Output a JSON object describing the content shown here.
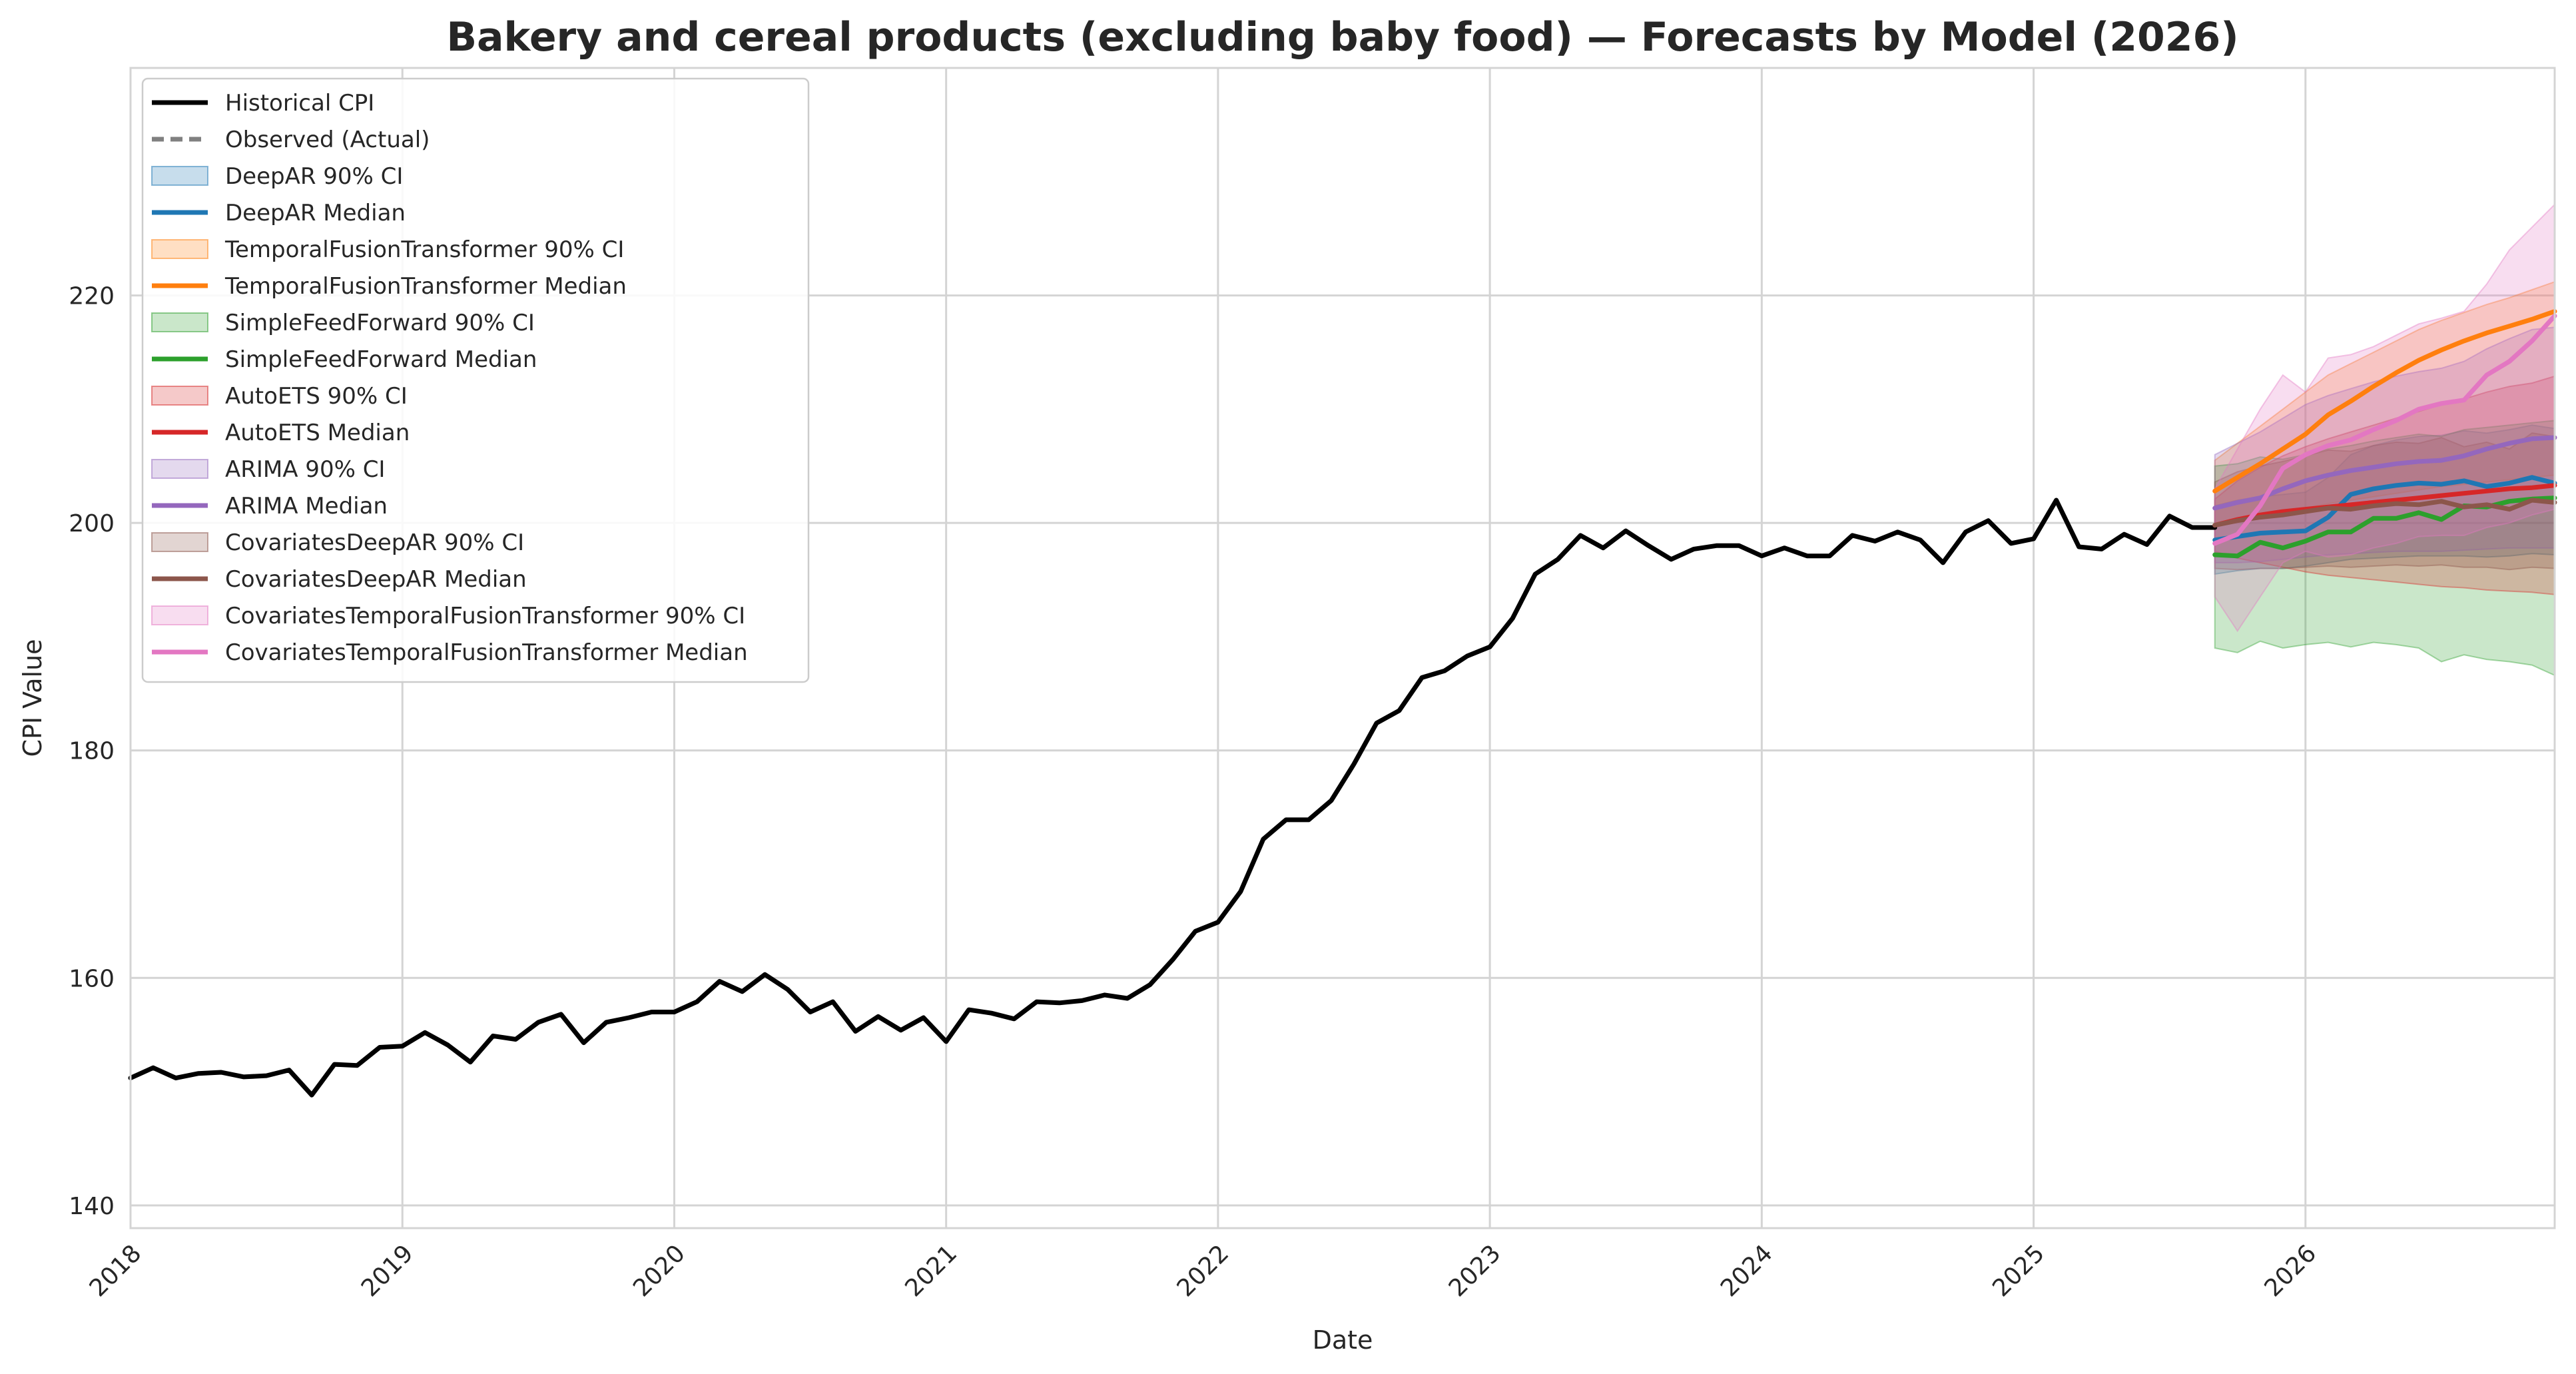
{
  "chart_data": {
    "type": "line",
    "title": "Bakery and cereal products (excluding baby food) — Forecasts by Model (2026)",
    "xlabel": "Date",
    "ylabel": "CPI Value",
    "xlim": [
      "2018-01",
      "2026-12"
    ],
    "ylim": [
      138,
      240
    ],
    "yticks": [
      140,
      160,
      180,
      200,
      220
    ],
    "xticks": [
      "2018",
      "2019",
      "2020",
      "2021",
      "2022",
      "2023",
      "2024",
      "2025",
      "2026"
    ],
    "grid": true,
    "legend_position": "upper left",
    "historical": {
      "name": "Historical CPI",
      "color": "#000000",
      "x": [
        "2018-01",
        "2018-02",
        "2018-03",
        "2018-04",
        "2018-05",
        "2018-06",
        "2018-07",
        "2018-08",
        "2018-09",
        "2018-10",
        "2018-11",
        "2018-12",
        "2019-01",
        "2019-02",
        "2019-03",
        "2019-04",
        "2019-05",
        "2019-06",
        "2019-07",
        "2019-08",
        "2019-09",
        "2019-10",
        "2019-11",
        "2019-12",
        "2020-01",
        "2020-02",
        "2020-03",
        "2020-04",
        "2020-05",
        "2020-06",
        "2020-07",
        "2020-08",
        "2020-09",
        "2020-10",
        "2020-11",
        "2020-12",
        "2021-01",
        "2021-02",
        "2021-03",
        "2021-04",
        "2021-05",
        "2021-06",
        "2021-07",
        "2021-08",
        "2021-09",
        "2021-10",
        "2021-11",
        "2021-12",
        "2022-01",
        "2022-02",
        "2022-03",
        "2022-04",
        "2022-05",
        "2022-06",
        "2022-07",
        "2022-08",
        "2022-09",
        "2022-10",
        "2022-11",
        "2022-12",
        "2023-01",
        "2023-02",
        "2023-03",
        "2023-04",
        "2023-05",
        "2023-06",
        "2023-07",
        "2023-08",
        "2023-09",
        "2023-10",
        "2023-11",
        "2023-12",
        "2024-01",
        "2024-02",
        "2024-03",
        "2024-04",
        "2024-05",
        "2024-06",
        "2024-07",
        "2024-08",
        "2024-09",
        "2024-10",
        "2024-11",
        "2024-12",
        "2025-01",
        "2025-02",
        "2025-03",
        "2025-04",
        "2025-05",
        "2025-06",
        "2025-07",
        "2025-08",
        "2025-09"
      ],
      "values": [
        151.2,
        152.1,
        151.2,
        151.6,
        151.7,
        151.3,
        151.4,
        151.9,
        149.7,
        152.4,
        152.3,
        153.9,
        154.0,
        155.2,
        154.1,
        152.6,
        154.9,
        154.6,
        156.1,
        156.8,
        154.3,
        156.1,
        156.5,
        157.0,
        157.0,
        157.9,
        159.7,
        158.8,
        160.3,
        159.0,
        157.0,
        157.9,
        155.3,
        156.6,
        155.4,
        156.5,
        154.4,
        157.2,
        156.9,
        156.4,
        157.9,
        157.8,
        158.0,
        158.5,
        158.2,
        159.4,
        161.6,
        164.1,
        164.9,
        167.6,
        172.2,
        173.9,
        173.9,
        175.6,
        178.8,
        182.4,
        183.5,
        186.4,
        187.0,
        188.3,
        189.1,
        191.6,
        195.5,
        196.8,
        198.9,
        197.8,
        199.3,
        198.0,
        196.8,
        197.7,
        198.0,
        198.0,
        197.1,
        197.8,
        197.1,
        197.1,
        198.9,
        198.4,
        199.2,
        198.5,
        196.5,
        199.2,
        200.2,
        198.2,
        198.6,
        202.0,
        197.9,
        197.7,
        199.0,
        198.1,
        200.6,
        199.6,
        199.6
      ]
    },
    "observed": {
      "name": "Observed (Actual)",
      "color": "#808080",
      "x": [],
      "values": []
    },
    "forecast_x": [
      "2025-09",
      "2025-10",
      "2025-11",
      "2025-12",
      "2026-01",
      "2026-02",
      "2026-03",
      "2026-04",
      "2026-05",
      "2026-06",
      "2026-07",
      "2026-08",
      "2026-09",
      "2026-10",
      "2026-11",
      "2026-12"
    ],
    "series": [
      {
        "name": "DeepAR Median",
        "ci_name": "DeepAR 90% CI",
        "color": "#1f77b4",
        "values": [
          198.5,
          198.8,
          199.1,
          199.2,
          199.3,
          200.5,
          202.5,
          203.0,
          203.3,
          203.5,
          203.4,
          203.7,
          203.2,
          203.5,
          204.0,
          203.5
        ],
        "lower": [
          195.5,
          195.8,
          196.0,
          196.0,
          196.2,
          196.5,
          196.8,
          196.9,
          197.0,
          197.1,
          197.1,
          197.1,
          197.0,
          197.1,
          197.3,
          197.2
        ],
        "upper": [
          201.5,
          202.0,
          202.3,
          202.5,
          202.7,
          204.0,
          206.0,
          206.8,
          207.3,
          207.6,
          207.7,
          208.1,
          207.9,
          208.2,
          208.6,
          208.3
        ]
      },
      {
        "name": "TemporalFusionTransformer Median",
        "ci_name": "TemporalFusionTransformer 90% CI",
        "color": "#ff7f0e",
        "values": [
          202.8,
          204.0,
          205.2,
          206.5,
          207.8,
          209.5,
          210.7,
          212.0,
          213.2,
          214.3,
          215.2,
          216.0,
          216.7,
          217.3,
          217.9,
          218.6
        ],
        "lower": [
          200.0,
          200.3,
          200.7,
          201.0,
          201.3,
          201.7,
          202.0,
          202.3,
          202.6,
          202.9,
          203.2,
          203.4,
          203.6,
          203.8,
          204.0,
          204.2
        ],
        "upper": [
          205.5,
          207.0,
          208.5,
          210.0,
          211.5,
          213.0,
          214.0,
          215.0,
          216.0,
          217.0,
          217.8,
          218.5,
          219.2,
          219.8,
          220.5,
          221.2
        ]
      },
      {
        "name": "SimpleFeedForward Median",
        "ci_name": "SimpleFeedForward 90% CI",
        "color": "#2ca02c",
        "values": [
          197.2,
          197.1,
          198.3,
          197.8,
          198.4,
          199.2,
          199.2,
          200.4,
          200.4,
          200.9,
          200.3,
          201.5,
          201.4,
          201.9,
          202.1,
          202.2
        ],
        "lower": [
          189.0,
          188.6,
          189.6,
          189.0,
          189.3,
          189.5,
          189.1,
          189.5,
          189.3,
          189.0,
          187.8,
          188.4,
          188.0,
          187.8,
          187.5,
          186.6
        ],
        "upper": [
          205.0,
          205.2,
          205.8,
          205.6,
          206.0,
          206.5,
          206.8,
          207.2,
          207.5,
          207.8,
          207.6,
          208.2,
          208.4,
          208.6,
          208.8,
          209.0
        ]
      },
      {
        "name": "AutoETS Median",
        "ci_name": "AutoETS 90% CI",
        "color": "#d62728",
        "values": [
          199.8,
          200.3,
          200.7,
          201.0,
          201.2,
          201.4,
          201.6,
          201.8,
          202.0,
          202.2,
          202.4,
          202.6,
          202.8,
          203.0,
          203.1,
          203.3
        ],
        "lower": [
          197.5,
          196.9,
          196.5,
          196.1,
          195.7,
          195.4,
          195.2,
          195.0,
          194.8,
          194.6,
          194.4,
          194.3,
          194.1,
          194.0,
          193.9,
          193.7
        ],
        "upper": [
          202.1,
          203.7,
          204.9,
          205.9,
          206.7,
          207.4,
          208.0,
          208.6,
          209.2,
          209.8,
          210.4,
          210.9,
          211.5,
          212.0,
          212.3,
          212.9
        ]
      },
      {
        "name": "ARIMA Median",
        "ci_name": "ARIMA 90% CI",
        "color": "#9467bd",
        "values": [
          201.3,
          201.8,
          202.2,
          203.0,
          203.7,
          204.2,
          204.6,
          204.9,
          205.2,
          205.4,
          205.5,
          205.9,
          206.5,
          207.0,
          207.4,
          207.5
        ],
        "lower": [
          196.5,
          196.5,
          196.6,
          196.8,
          197.0,
          197.2,
          197.3,
          197.4,
          197.5,
          197.5,
          197.5,
          197.6,
          197.7,
          197.8,
          197.8,
          197.8
        ],
        "upper": [
          206.0,
          207.0,
          208.0,
          209.2,
          210.4,
          211.2,
          211.8,
          212.4,
          212.9,
          213.3,
          213.6,
          214.2,
          215.3,
          216.2,
          217.0,
          217.2
        ]
      },
      {
        "name": "CovariatesDeepAR Median",
        "ci_name": "CovariatesDeepAR 90% CI",
        "color": "#8c564b",
        "values": [
          199.8,
          200.2,
          200.5,
          200.7,
          201.0,
          201.3,
          201.2,
          201.5,
          201.7,
          201.6,
          201.9,
          201.4,
          201.6,
          201.2,
          202.0,
          201.8
        ],
        "lower": [
          196.0,
          195.9,
          196.0,
          196.0,
          196.1,
          196.2,
          196.1,
          196.2,
          196.3,
          196.2,
          196.3,
          196.1,
          196.1,
          195.9,
          196.1,
          196.0
        ],
        "upper": [
          203.6,
          204.5,
          205.0,
          205.4,
          205.9,
          206.4,
          206.3,
          206.8,
          207.1,
          207.0,
          207.5,
          206.7,
          207.1,
          206.5,
          207.9,
          207.6
        ]
      },
      {
        "name": "CovariatesTemporalFusionTransformer Median",
        "ci_name": "CovariatesTemporalFusionTransformer 90% CI",
        "color": "#e377c2",
        "values": [
          198.2,
          199.0,
          201.5,
          204.8,
          206.0,
          206.8,
          207.3,
          208.2,
          209.0,
          210.0,
          210.5,
          210.8,
          213.0,
          214.2,
          216.0,
          218.2
        ],
        "lower": [
          193.5,
          190.5,
          193.5,
          196.5,
          197.5,
          197.0,
          197.2,
          197.8,
          198.2,
          198.8,
          198.9,
          198.9,
          199.6,
          200.0,
          200.7,
          201.2
        ],
        "upper": [
          203.0,
          206.5,
          210.0,
          213.0,
          211.5,
          214.5,
          214.8,
          215.5,
          216.5,
          217.5,
          218.0,
          218.6,
          221.0,
          224.0,
          226.0,
          228.0
        ]
      }
    ]
  }
}
